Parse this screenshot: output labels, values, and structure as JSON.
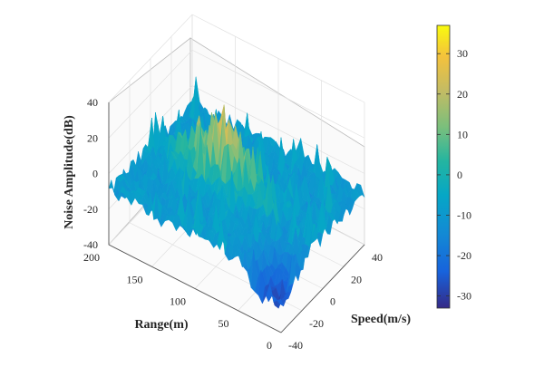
{
  "chart_data": {
    "type": "surface",
    "title": "",
    "xlabel": "Range(m)",
    "ylabel": "Speed(m/s)",
    "zlabel": "Noise Amplitude(dB)",
    "x_range": [
      0,
      200
    ],
    "x_ticks": [
      "0",
      "50",
      "100",
      "150",
      "200"
    ],
    "y_range": [
      -40,
      40
    ],
    "y_ticks": [
      "-40",
      "-20",
      "0",
      "20",
      "40"
    ],
    "z_range": [
      -40,
      40
    ],
    "z_ticks": [
      "-40",
      "-20",
      "0",
      "20",
      "40"
    ],
    "colorbar": {
      "colormap": "parula",
      "range": [
        -33,
        37
      ],
      "ticks": [
        "30",
        "20",
        "10",
        "0",
        "-10",
        "-20",
        "-30"
      ],
      "position": "right"
    },
    "grid": true,
    "surface_baseline_db": -10,
    "surface_peak_db": 35,
    "noise_fluctuation_db": 10
  }
}
